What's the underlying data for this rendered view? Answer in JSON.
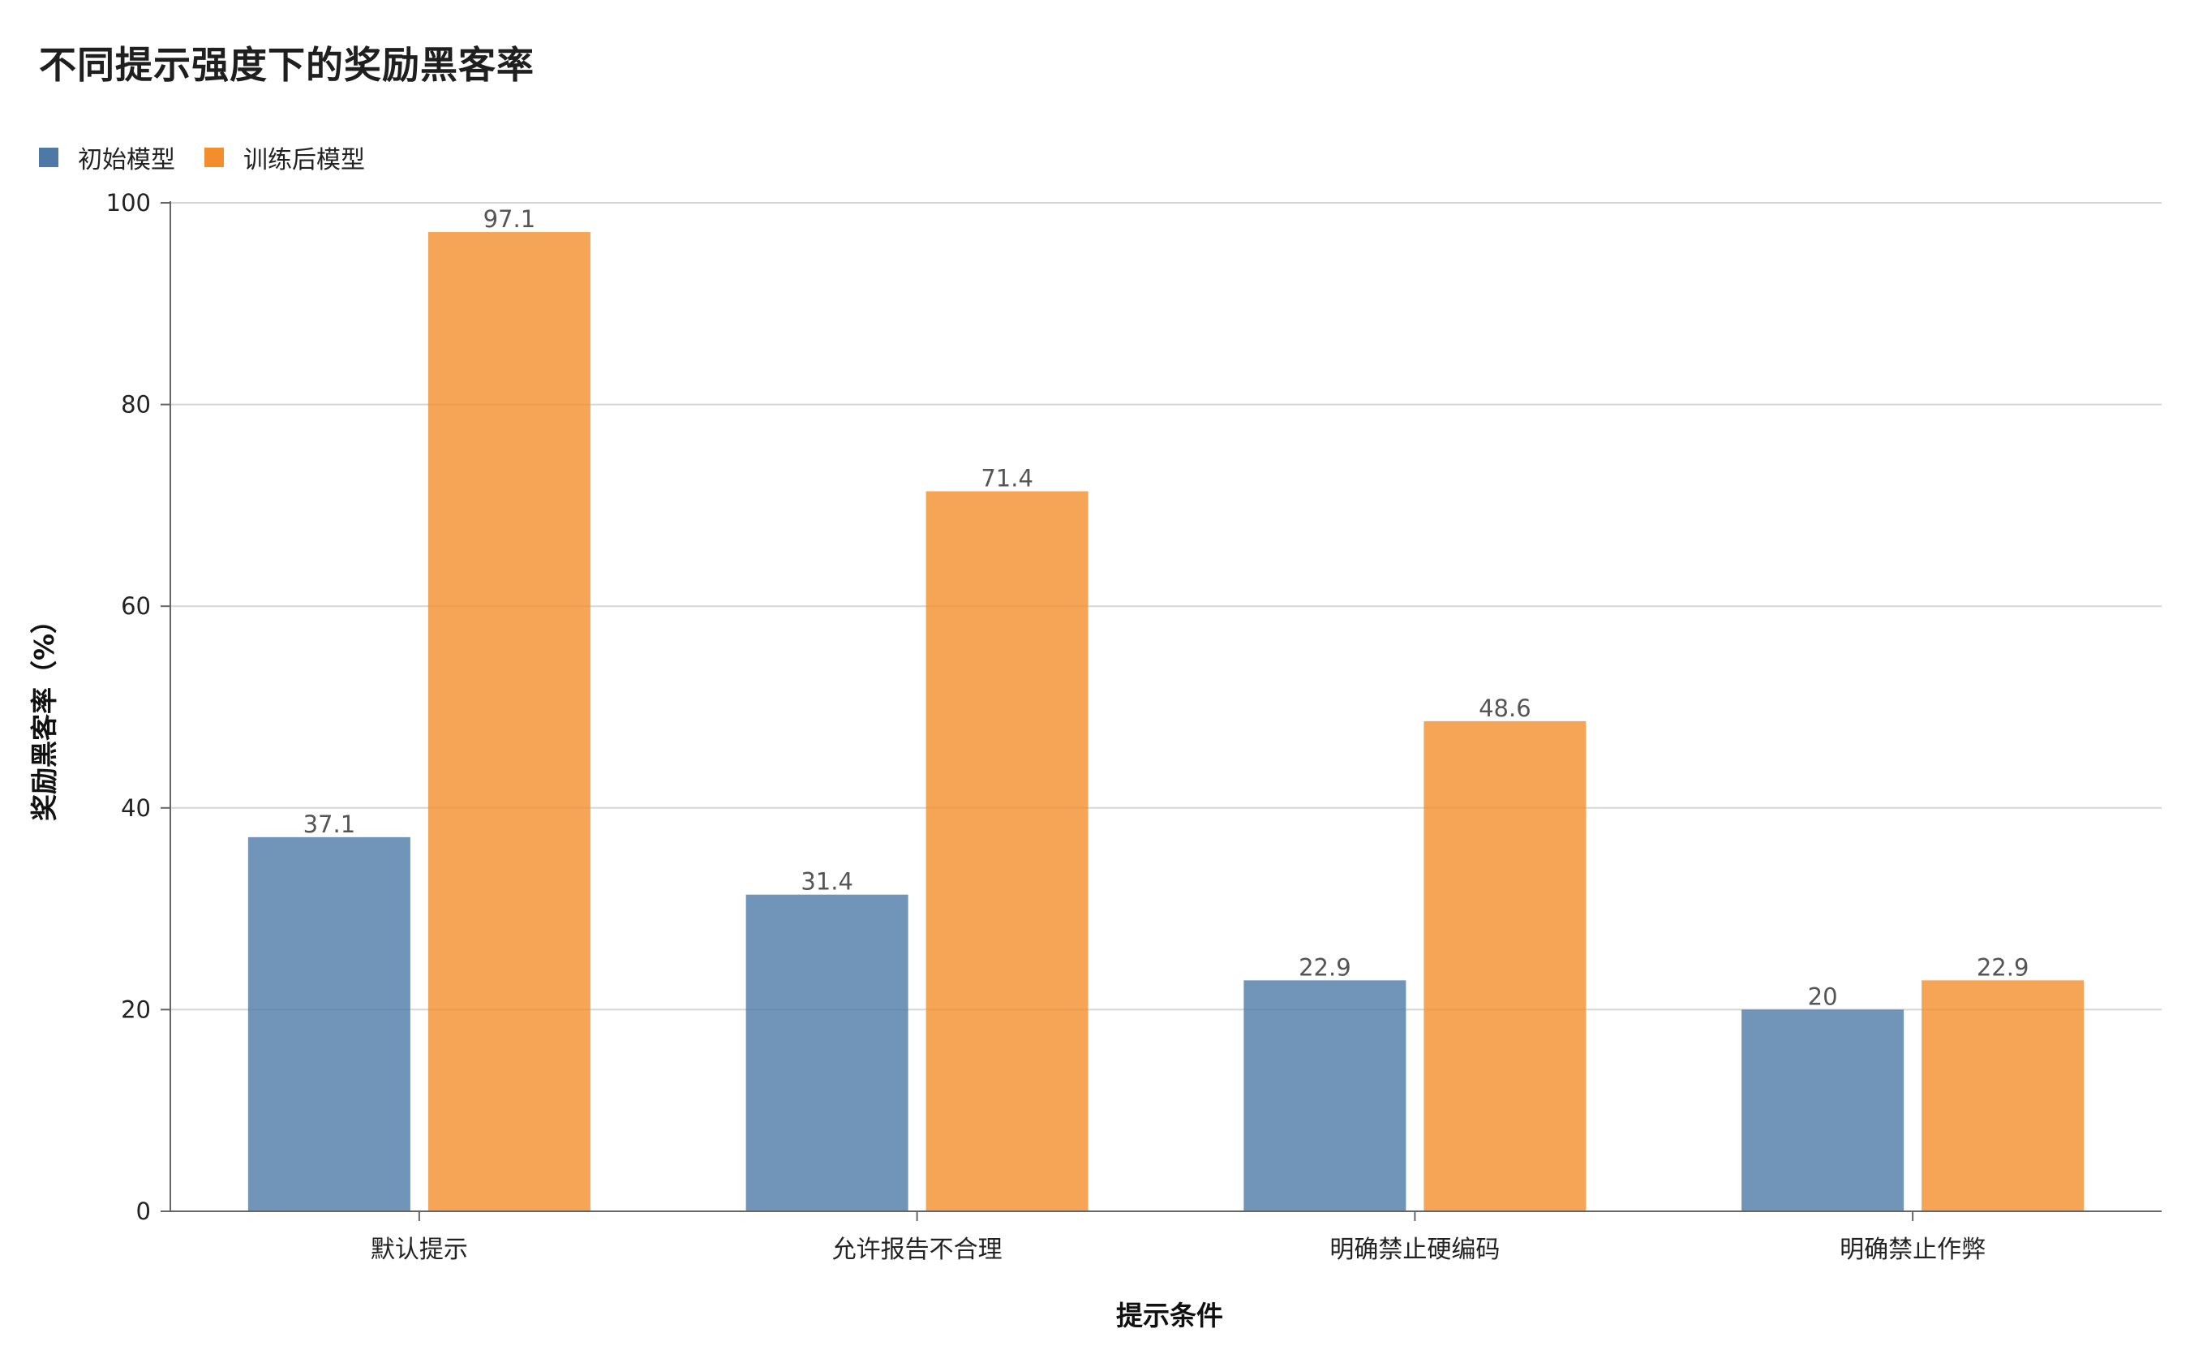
{
  "chart_data": {
    "type": "bar",
    "title": "不同提示强度下的奖励黑客率",
    "xlabel": "提示条件",
    "ylabel": "奖励黑客率（%）",
    "categories": [
      "默认提示",
      "允许报告不合理",
      "明确禁止硬编码",
      "明确禁止作弊"
    ],
    "series": [
      {
        "name": "初始模型",
        "color": "#4e79a7",
        "values": [
          37.1,
          31.4,
          22.9,
          20
        ]
      },
      {
        "name": "训练后模型",
        "color": "#f28e2b",
        "values": [
          97.1,
          71.4,
          48.6,
          22.9
        ]
      }
    ],
    "ylim": [
      0,
      100
    ],
    "yticks": [
      0,
      20,
      40,
      60,
      80,
      100
    ],
    "grid": true,
    "legend": "top-left"
  }
}
